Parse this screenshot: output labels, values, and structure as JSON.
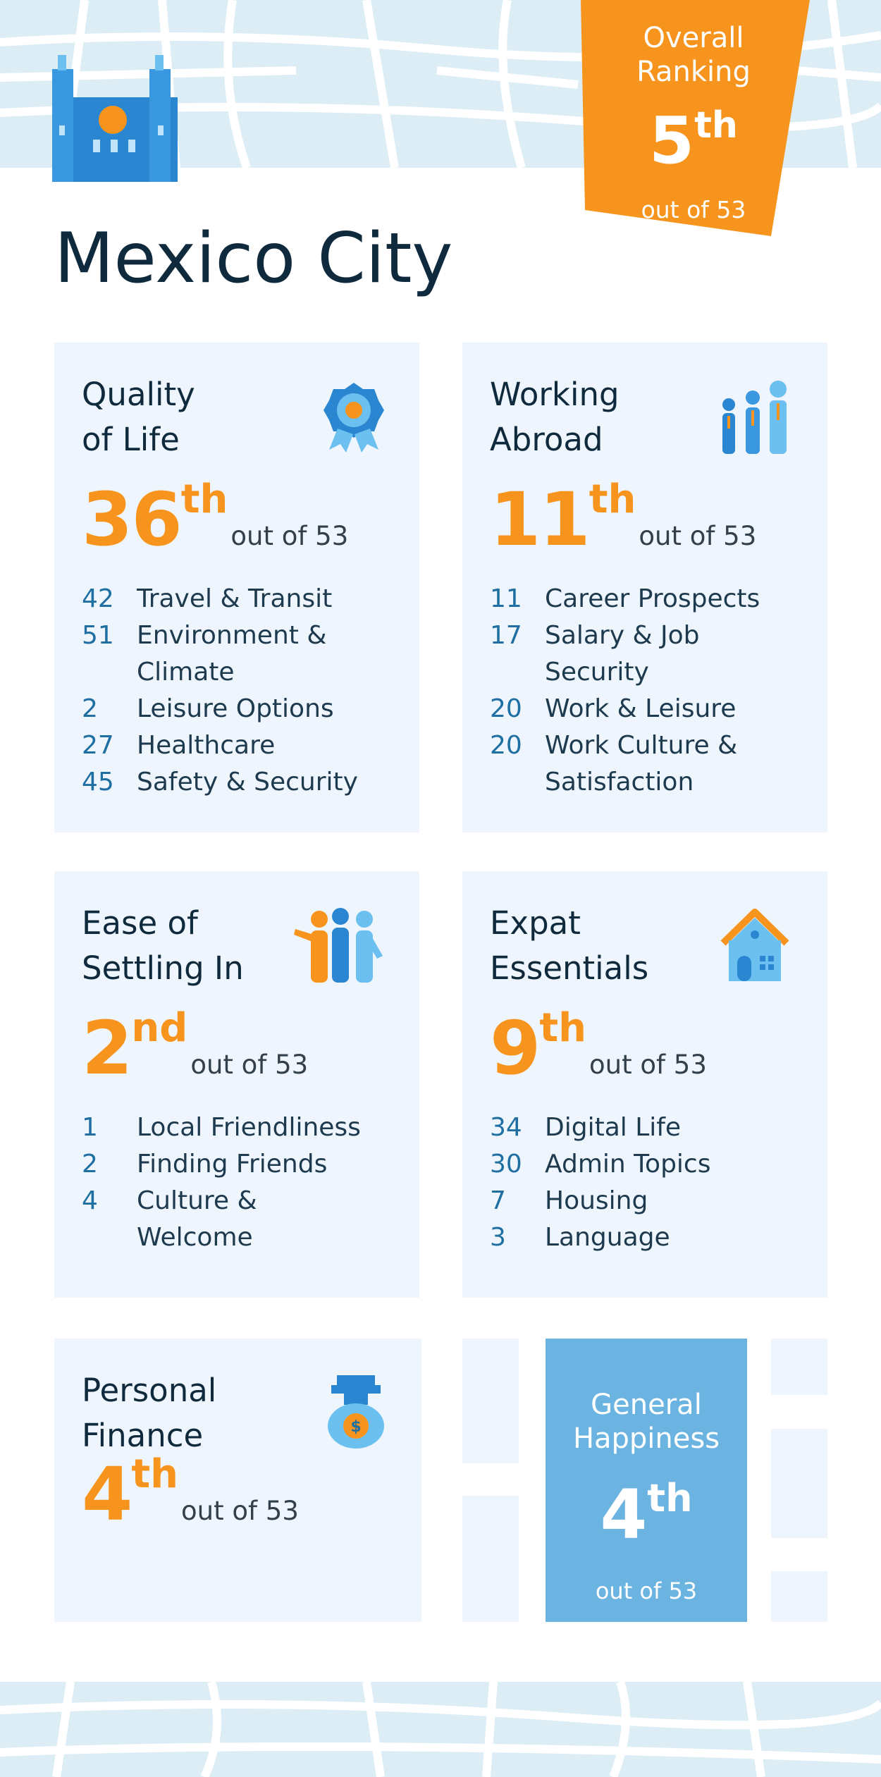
{
  "overall": {
    "label_lines": [
      "Overall",
      "Ranking"
    ],
    "rank": 5,
    "suffix": "th",
    "out_of": "out of 53"
  },
  "city": "Mexico City",
  "cards": [
    {
      "title_lines": [
        "Quality",
        "of Life"
      ],
      "rank": 36,
      "suffix": "th",
      "out_of": "out of 53",
      "items": [
        {
          "rank": 42,
          "label": "Travel & Transit"
        },
        {
          "rank": 51,
          "label": "Environment & Climate"
        },
        {
          "rank": 2,
          "label": "Leisure Options"
        },
        {
          "rank": 27,
          "label": "Healthcare"
        },
        {
          "rank": 45,
          "label": "Safety & Security"
        }
      ]
    },
    {
      "title_lines": [
        "Working",
        "Abroad"
      ],
      "rank": 11,
      "suffix": "th",
      "out_of": "out of 53",
      "items": [
        {
          "rank": 11,
          "label": "Career Prospects"
        },
        {
          "rank": 17,
          "label": "Salary & Job Security"
        },
        {
          "rank": 20,
          "label": "Work & Leisure"
        },
        {
          "rank": 20,
          "label": "Work Culture & Satisfaction"
        }
      ]
    },
    {
      "title_lines": [
        "Ease of",
        "Settling In"
      ],
      "rank": 2,
      "suffix": "nd",
      "out_of": "out of 53",
      "items": [
        {
          "rank": 1,
          "label": "Local Friendliness"
        },
        {
          "rank": 2,
          "label": "Finding Friends"
        },
        {
          "rank": 4,
          "label": "Culture & Welcome"
        }
      ]
    },
    {
      "title_lines": [
        "Expat",
        "Essentials"
      ],
      "rank": 9,
      "suffix": "th",
      "out_of": "out of 53",
      "items": [
        {
          "rank": 34,
          "label": "Digital Life"
        },
        {
          "rank": 30,
          "label": "Admin Topics"
        },
        {
          "rank": 7,
          "label": "Housing"
        },
        {
          "rank": 3,
          "label": "Language"
        }
      ]
    },
    {
      "title_lines": [
        "Personal",
        "Finance"
      ],
      "rank": 4,
      "suffix": "th",
      "out_of": "out of 53"
    }
  ],
  "happiness": {
    "title_lines": [
      "General",
      "Happiness"
    ],
    "rank": 4,
    "suffix": "th",
    "out_of": "out of 53"
  }
}
